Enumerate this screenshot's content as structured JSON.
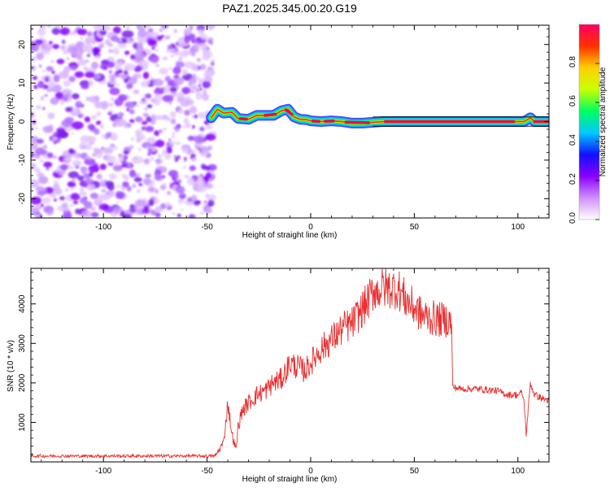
{
  "title": "PAZ1.2025.345.00.20.G19",
  "chart_data": [
    {
      "type": "heatmap",
      "title": "PAZ1.2025.345.00.20.G19",
      "xlabel": "Height of straight line (km)",
      "ylabel": "Frequency (Hz)",
      "xlim": [
        -135,
        115
      ],
      "ylim": [
        -25,
        25
      ],
      "x_ticks": [
        -100,
        -50,
        0,
        50,
        100
      ],
      "x_tick_labels": [
        "-100",
        "-50",
        "0",
        "50",
        "100"
      ],
      "y_ticks": [
        -20,
        -10,
        0,
        10,
        20
      ],
      "y_tick_labels": [
        "-20",
        "-10",
        "0",
        "10",
        "20"
      ],
      "noise_region_x": [
        -135,
        -47
      ],
      "signal_trace": {
        "x": [
          -48,
          -45,
          -42,
          -38,
          -35,
          -30,
          -26,
          -22,
          -18,
          -14,
          -11,
          -8,
          -5,
          -2,
          0,
          5,
          10,
          15,
          20,
          25,
          30,
          35,
          40,
          60,
          80,
          100,
          103,
          106,
          108,
          112,
          115
        ],
        "y": [
          1.0,
          3.2,
          2.2,
          2.4,
          0.8,
          0.6,
          1.6,
          1.6,
          1.6,
          2.8,
          3.2,
          1.2,
          0.6,
          0.5,
          0.2,
          0.0,
          0.2,
          0.0,
          -0.4,
          -0.4,
          -0.2,
          0.0,
          0.0,
          0.0,
          0.0,
          0.0,
          0.0,
          1.0,
          0.0,
          0.0,
          0.0
        ]
      },
      "colorbar": {
        "label": "Normalized spectral amplitude",
        "range": [
          0,
          1
        ],
        "ticks": [
          0.0,
          0.2,
          0.4,
          0.6,
          0.8
        ],
        "tick_labels": [
          "0.0",
          "0.2",
          "0.4",
          "0.6",
          "0.8"
        ],
        "colors": [
          "#ffffff",
          "#d090ff",
          "#8a00ff",
          "#1010ff",
          "#00c8ff",
          "#00ff60",
          "#c8ff00",
          "#ffd000",
          "#ff3000",
          "#ff0060"
        ]
      }
    },
    {
      "type": "line",
      "xlabel": "Height of straight line (km)",
      "ylabel": "SNR (10 * v/v)",
      "xlim": [
        -135,
        115
      ],
      "ylim": [
        0,
        4900
      ],
      "x_ticks": [
        -100,
        -50,
        0,
        50,
        100
      ],
      "x_tick_labels": [
        "-100",
        "-50",
        "0",
        "50",
        "100"
      ],
      "y_ticks": [
        1000,
        2000,
        3000,
        4000
      ],
      "y_tick_labels": [
        "1000",
        "2000",
        "3000",
        "4000"
      ],
      "color": "#e83030",
      "series": [
        {
          "name": "SNR",
          "x": [
            -135,
            -46,
            -42,
            -40,
            -38,
            -36,
            -35,
            -33,
            -30,
            -26,
            -22,
            -18,
            -14,
            -10,
            -6,
            -3,
            0,
            4,
            8,
            12,
            16,
            20,
            24,
            28,
            31,
            32,
            34,
            38,
            42,
            46,
            50,
            54,
            58,
            62,
            66,
            68,
            68.5,
            72,
            80,
            90,
            95,
            100,
            102,
            103,
            104,
            106,
            108,
            112,
            115
          ],
          "y": [
            150,
            150,
            500,
            1500,
            700,
            300,
            900,
            1300,
            1500,
            1700,
            1800,
            2000,
            2100,
            2500,
            2400,
            2300,
            2500,
            2800,
            3000,
            3200,
            3400,
            3500,
            3800,
            4100,
            4400,
            4300,
            4400,
            4400,
            4400,
            4100,
            3900,
            3700,
            3650,
            3600,
            3600,
            3500,
            1900,
            1850,
            1850,
            1800,
            1700,
            1700,
            1750,
            1500,
            700,
            2000,
            1700,
            1600,
            1550
          ]
        }
      ]
    }
  ]
}
